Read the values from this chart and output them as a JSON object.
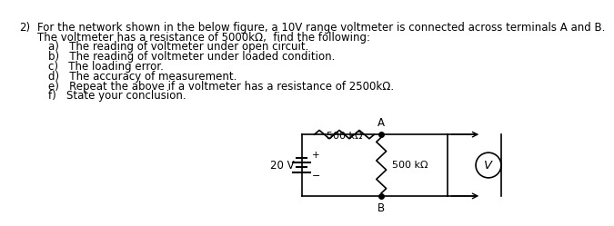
{
  "title_number": "2)",
  "line1": "For the network shown in the below figure, a 10V range voltmeter is connected across terminals A and B.",
  "line2": "The voltmeter has a resistance of 5000kΩ,  find the following:",
  "items": [
    "a)   The reading of voltmeter under open circuit.",
    "b)   The reading of voltmeter under loaded condition.",
    "c)   The loading error.",
    "d)   The accuracy of measurement.",
    "e)   Repeat the above if a voltmeter has a resistance of 2500kΩ.",
    "f)   State your conclusion."
  ],
  "bg_color": "#ffffff",
  "text_color": "#000000",
  "font_size": 8.5,
  "circuit": {
    "battery_label": "20 V",
    "r_top_label": "500 kΩ",
    "r_right_label": "500 kΩ",
    "node_A": "A",
    "node_B": "B",
    "voltmeter_label": "V"
  }
}
